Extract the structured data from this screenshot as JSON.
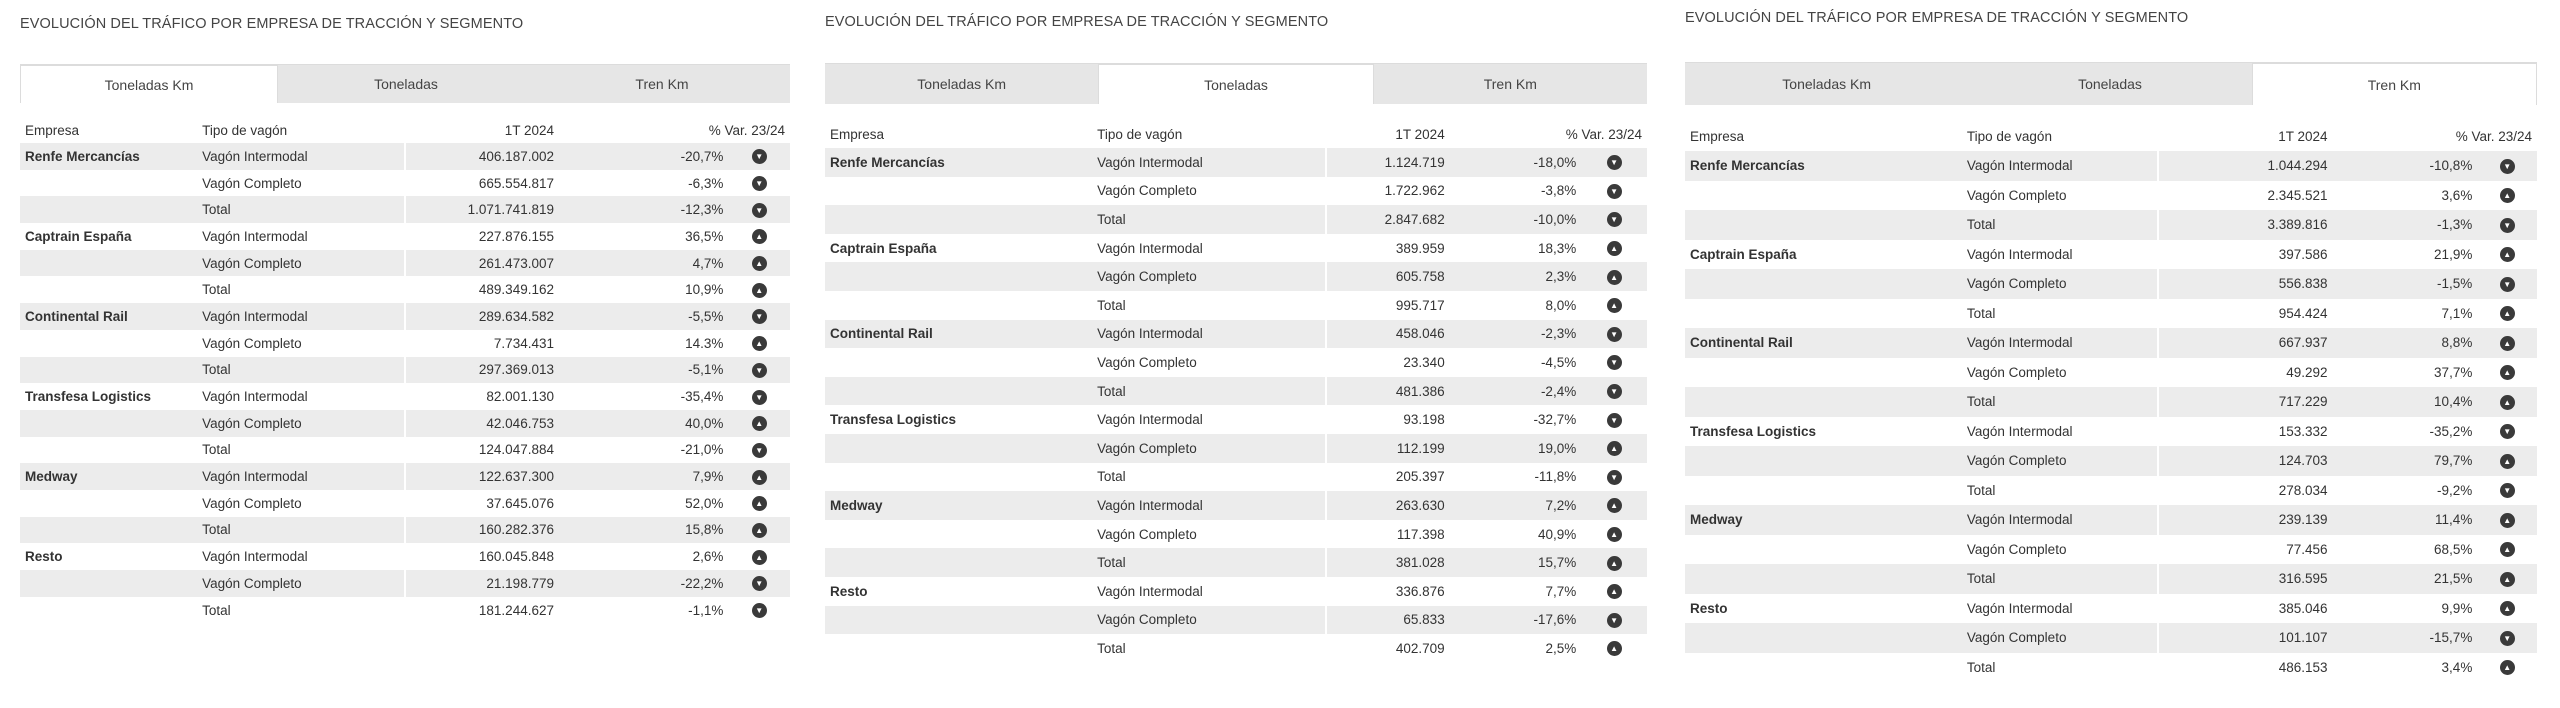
{
  "panels": [
    {
      "title": "EVOLUCIÓN DEL TRÁFICO POR EMPRESA DE TRACCIÓN Y SEGMENTO",
      "tabs": [
        "Toneladas Km",
        "Toneladas",
        "Tren Km"
      ],
      "active_tab": 0,
      "headers": {
        "empresa": "Empresa",
        "tipo": "Tipo de vagón",
        "periodo": "1T 2024",
        "var": "% Var. 23/24"
      },
      "rows": [
        {
          "empresa": "Renfe Mercancías",
          "tipo": "Vagón Intermodal",
          "valor": "406.187.002",
          "var": "-20,7%",
          "trend": "down"
        },
        {
          "empresa": "",
          "tipo": "Vagón Completo",
          "valor": "665.554.817",
          "var": "-6,3%",
          "trend": "down"
        },
        {
          "empresa": "",
          "tipo": "Total",
          "valor": "1.071.741.819",
          "var": "-12,3%",
          "trend": "down"
        },
        {
          "empresa": "Captrain España",
          "tipo": "Vagón Intermodal",
          "valor": "227.876.155",
          "var": "36,5%",
          "trend": "up"
        },
        {
          "empresa": "",
          "tipo": "Vagón Completo",
          "valor": "261.473.007",
          "var": "4,7%",
          "trend": "up"
        },
        {
          "empresa": "",
          "tipo": "Total",
          "valor": "489.349.162",
          "var": "10,9%",
          "trend": "up"
        },
        {
          "empresa": "Continental Rail",
          "tipo": "Vagón Intermodal",
          "valor": "289.634.582",
          "var": "-5,5%",
          "trend": "down"
        },
        {
          "empresa": "",
          "tipo": "Vagón Completo",
          "valor": "7.734.431",
          "var": "14.3%",
          "trend": "up"
        },
        {
          "empresa": "",
          "tipo": "Total",
          "valor": "297.369.013",
          "var": "-5,1%",
          "trend": "down"
        },
        {
          "empresa": "Transfesa Logistics",
          "tipo": "Vagón Intermodal",
          "valor": "82.001.130",
          "var": "-35,4%",
          "trend": "down"
        },
        {
          "empresa": "",
          "tipo": "Vagón Completo",
          "valor": "42.046.753",
          "var": "40,0%",
          "trend": "up"
        },
        {
          "empresa": "",
          "tipo": "Total",
          "valor": "124.047.884",
          "var": "-21,0%",
          "trend": "down"
        },
        {
          "empresa": "Medway",
          "tipo": "Vagón Intermodal",
          "valor": "122.637.300",
          "var": "7,9%",
          "trend": "up"
        },
        {
          "empresa": "",
          "tipo": "Vagón Completo",
          "valor": "37.645.076",
          "var": "52,0%",
          "trend": "up"
        },
        {
          "empresa": "",
          "tipo": "Total",
          "valor": "160.282.376",
          "var": "15,8%",
          "trend": "up"
        },
        {
          "empresa": "Resto",
          "tipo": "Vagón Intermodal",
          "valor": "160.045.848",
          "var": "2,6%",
          "trend": "up"
        },
        {
          "empresa": "",
          "tipo": "Vagón Completo",
          "valor": "21.198.779",
          "var": "-22,2%",
          "trend": "down"
        },
        {
          "empresa": "",
          "tipo": "Total",
          "valor": "181.244.627",
          "var": "-1,1%",
          "trend": "down"
        }
      ]
    },
    {
      "title": "EVOLUCIÓN DEL TRÁFICO POR EMPRESA DE TRACCIÓN Y SEGMENTO",
      "tabs": [
        "Toneladas Km",
        "Toneladas",
        "Tren Km"
      ],
      "active_tab": 1,
      "headers": {
        "empresa": "Empresa",
        "tipo": "Tipo de vagón",
        "periodo": "1T 2024",
        "var": "% Var. 23/24"
      },
      "rows": [
        {
          "empresa": "Renfe Mercancías",
          "tipo": "Vagón Intermodal",
          "valor": "1.124.719",
          "var": "-18,0%",
          "trend": "down"
        },
        {
          "empresa": "",
          "tipo": "Vagón Completo",
          "valor": "1.722.962",
          "var": "-3,8%",
          "trend": "down"
        },
        {
          "empresa": "",
          "tipo": "Total",
          "valor": "2.847.682",
          "var": "-10,0%",
          "trend": "down"
        },
        {
          "empresa": "Captrain España",
          "tipo": "Vagón Intermodal",
          "valor": "389.959",
          "var": "18,3%",
          "trend": "up"
        },
        {
          "empresa": "",
          "tipo": "Vagón Completo",
          "valor": "605.758",
          "var": "2,3%",
          "trend": "up"
        },
        {
          "empresa": "",
          "tipo": "Total",
          "valor": "995.717",
          "var": "8,0%",
          "trend": "up"
        },
        {
          "empresa": "Continental Rail",
          "tipo": "Vagón Intermodal",
          "valor": "458.046",
          "var": "-2,3%",
          "trend": "down"
        },
        {
          "empresa": "",
          "tipo": "Vagón Completo",
          "valor": "23.340",
          "var": "-4,5%",
          "trend": "down"
        },
        {
          "empresa": "",
          "tipo": "Total",
          "valor": "481.386",
          "var": "-2,4%",
          "trend": "down"
        },
        {
          "empresa": "Transfesa Logistics",
          "tipo": "Vagón Intermodal",
          "valor": "93.198",
          "var": "-32,7%",
          "trend": "down"
        },
        {
          "empresa": "",
          "tipo": "Vagón Completo",
          "valor": "112.199",
          "var": "19,0%",
          "trend": "up"
        },
        {
          "empresa": "",
          "tipo": "Total",
          "valor": "205.397",
          "var": "-11,8%",
          "trend": "down"
        },
        {
          "empresa": "Medway",
          "tipo": "Vagón Intermodal",
          "valor": "263.630",
          "var": "7,2%",
          "trend": "up"
        },
        {
          "empresa": "",
          "tipo": "Vagón Completo",
          "valor": "117.398",
          "var": "40,9%",
          "trend": "up"
        },
        {
          "empresa": "",
          "tipo": "Total",
          "valor": "381.028",
          "var": "15,7%",
          "trend": "up"
        },
        {
          "empresa": "Resto",
          "tipo": "Vagón Intermodal",
          "valor": "336.876",
          "var": "7,7%",
          "trend": "up"
        },
        {
          "empresa": "",
          "tipo": "Vagón Completo",
          "valor": "65.833",
          "var": "-17,6%",
          "trend": "down"
        },
        {
          "empresa": "",
          "tipo": "Total",
          "valor": "402.709",
          "var": "2,5%",
          "trend": "up"
        }
      ]
    },
    {
      "title": "EVOLUCIÓN DEL TRÁFICO POR EMPRESA DE TRACCIÓN Y SEGMENTO",
      "tabs": [
        "Toneladas Km",
        "Toneladas",
        "Tren Km"
      ],
      "active_tab": 2,
      "headers": {
        "empresa": "Empresa",
        "tipo": "Tipo de vagón",
        "periodo": "1T 2024",
        "var": "% Var. 23/24"
      },
      "rows": [
        {
          "empresa": "Renfe Mercancías",
          "tipo": "Vagón Intermodal",
          "valor": "1.044.294",
          "var": "-10,8%",
          "trend": "down"
        },
        {
          "empresa": "",
          "tipo": "Vagón Completo",
          "valor": "2.345.521",
          "var": "3,6%",
          "trend": "up"
        },
        {
          "empresa": "",
          "tipo": "Total",
          "valor": "3.389.816",
          "var": "-1,3%",
          "trend": "down"
        },
        {
          "empresa": "Captrain España",
          "tipo": "Vagón Intermodal",
          "valor": "397.586",
          "var": "21,9%",
          "trend": "up"
        },
        {
          "empresa": "",
          "tipo": "Vagón Completo",
          "valor": "556.838",
          "var": "-1,5%",
          "trend": "down"
        },
        {
          "empresa": "",
          "tipo": "Total",
          "valor": "954.424",
          "var": "7,1%",
          "trend": "up"
        },
        {
          "empresa": "Continental Rail",
          "tipo": "Vagón Intermodal",
          "valor": "667.937",
          "var": "8,8%",
          "trend": "up"
        },
        {
          "empresa": "",
          "tipo": "Vagón Completo",
          "valor": "49.292",
          "var": "37,7%",
          "trend": "up"
        },
        {
          "empresa": "",
          "tipo": "Total",
          "valor": "717.229",
          "var": "10,4%",
          "trend": "up"
        },
        {
          "empresa": "Transfesa Logistics",
          "tipo": "Vagón Intermodal",
          "valor": "153.332",
          "var": "-35,2%",
          "trend": "down"
        },
        {
          "empresa": "",
          "tipo": "Vagón Completo",
          "valor": "124.703",
          "var": "79,7%",
          "trend": "up"
        },
        {
          "empresa": "",
          "tipo": "Total",
          "valor": "278.034",
          "var": "-9,2%",
          "trend": "down"
        },
        {
          "empresa": "Medway",
          "tipo": "Vagón Intermodal",
          "valor": "239.139",
          "var": "11,4%",
          "trend": "up"
        },
        {
          "empresa": "",
          "tipo": "Vagón Completo",
          "valor": "77.456",
          "var": "68,5%",
          "trend": "up"
        },
        {
          "empresa": "",
          "tipo": "Total",
          "valor": "316.595",
          "var": "21,5%",
          "trend": "up"
        },
        {
          "empresa": "Resto",
          "tipo": "Vagón Intermodal",
          "valor": "385.046",
          "var": "9,9%",
          "trend": "up"
        },
        {
          "empresa": "",
          "tipo": "Vagón Completo",
          "valor": "101.107",
          "var": "-15,7%",
          "trend": "down"
        },
        {
          "empresa": "",
          "tipo": "Total",
          "valor": "486.153",
          "var": "3,4%",
          "trend": "up"
        }
      ]
    }
  ],
  "icons": {
    "up": "arrow-up-circle-icon",
    "down": "arrow-down-circle-icon"
  },
  "colors": {
    "row_shade": "#ececec",
    "tab_bar": "#e6e6e6",
    "icon": "#3a3a3a"
  }
}
